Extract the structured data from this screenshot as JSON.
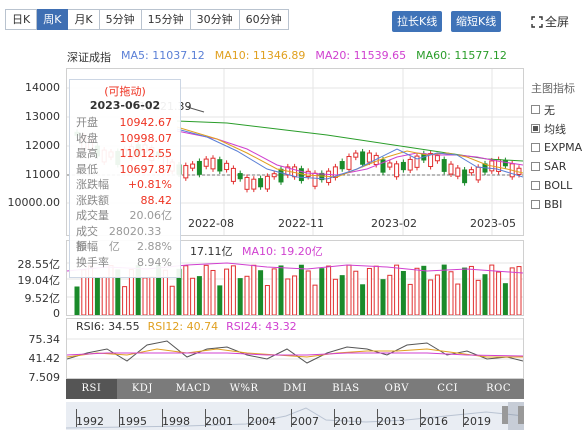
{
  "tabs": [
    {
      "label": "日K"
    },
    {
      "label": "周K"
    },
    {
      "label": "月K"
    },
    {
      "label": "5分钟"
    },
    {
      "label": "15分钟"
    },
    {
      "label": "30分钟"
    },
    {
      "label": "60分钟"
    }
  ],
  "buttons": {
    "stretch": "拉长K线",
    "shrink": "缩短K线",
    "fullscreen": "全屏"
  },
  "ma_legend": {
    "name": "深证成指",
    "ma5": "MA5: 11037.12",
    "ma10": "MA10: 11346.89",
    "ma20": "MA20: 11539.65",
    "ma60": "MA60: 11577.12"
  },
  "price_axis": [
    "14000",
    "13000",
    "12000",
    "11000",
    "10000.00"
  ],
  "date_axis": [
    "2022-08",
    "2022-11",
    "2023-02",
    "2023-05"
  ],
  "annotation": "13121.39",
  "tooltip": {
    "title": "(可拖动)",
    "date": "2023-06-02",
    "rows": [
      {
        "k": "开盘",
        "v": "10942.67",
        "c": "r"
      },
      {
        "k": "收盘",
        "v": "10998.07",
        "c": "r"
      },
      {
        "k": "最高",
        "v": "11012.55",
        "c": "r"
      },
      {
        "k": "最低",
        "v": "10697.87",
        "c": "r"
      },
      {
        "k": "涨跌幅",
        "v": "+0.81%",
        "c": "r"
      },
      {
        "k": "涨跌额",
        "v": "88.42",
        "c": "r"
      },
      {
        "k": "成交量",
        "v": "20.06亿",
        "c": "g"
      },
      {
        "k": "成交额",
        "v": "28020.33亿",
        "c": "g"
      },
      {
        "k": "振幅",
        "v": "2.88%",
        "c": "g"
      },
      {
        "k": "换手率",
        "v": "8.94%",
        "c": "g"
      }
    ]
  },
  "volume": {
    "axis": [
      "28.55亿",
      "19.04亿",
      "9.52亿",
      "0"
    ],
    "ma5": "17.11亿",
    "ma10": "MA10: 19.20亿"
  },
  "rsi": {
    "axis": [
      "75.34",
      "41.42",
      "7.509"
    ],
    "rsi6": "RSI6: 34.55",
    "rsi12": "RSI12: 40.74",
    "rsi24": "RSI24: 43.32"
  },
  "indicators": [
    "RSI",
    "KDJ",
    "MACD",
    "W%R",
    "DMI",
    "BIAS",
    "OBV",
    "CCI",
    "ROC"
  ],
  "side": {
    "header": "主图指标",
    "options": [
      {
        "label": "无",
        "checked": false
      },
      {
        "label": "均线",
        "checked": true
      },
      {
        "label": "EXPMA",
        "checked": false
      },
      {
        "label": "SAR",
        "checked": false
      },
      {
        "label": "BOLL",
        "checked": false
      },
      {
        "label": "BBI",
        "checked": false
      }
    ]
  },
  "years": [
    "1992",
    "1995",
    "1998",
    "2001",
    "2004",
    "2007",
    "2010",
    "2013",
    "2016",
    "2019"
  ],
  "colors": {
    "ma5": "#5a7fd6",
    "ma10": "#e0a020",
    "ma20": "#d040d0",
    "ma60": "#2a9d2a",
    "up": "#e03030",
    "down": "#1a8a2a"
  }
}
